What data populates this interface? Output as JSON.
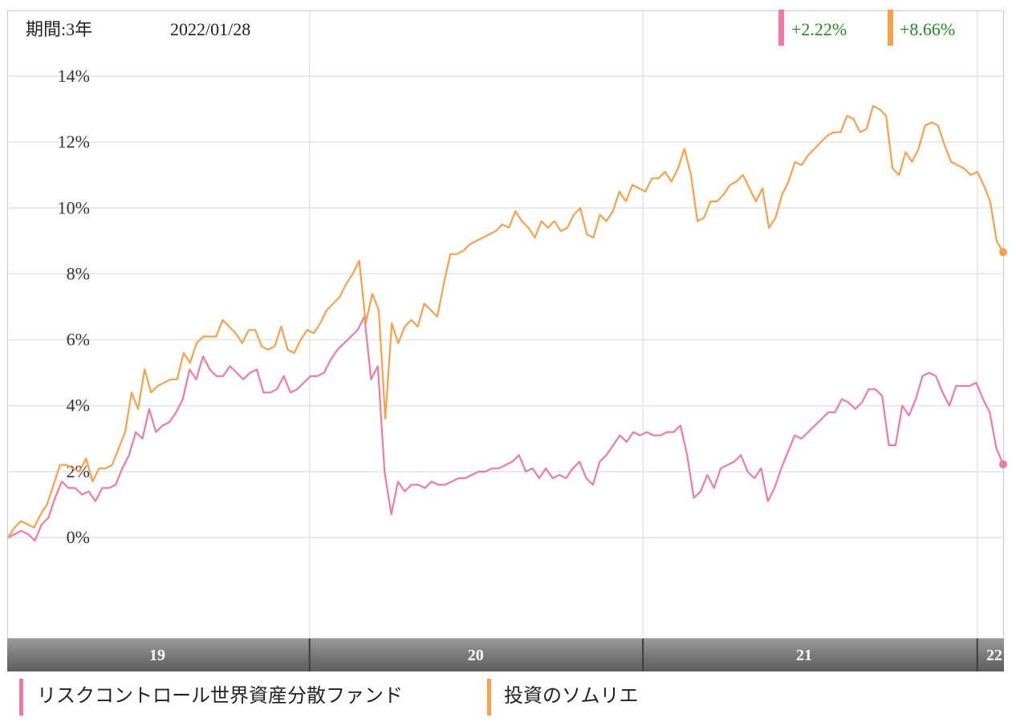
{
  "header": {
    "period_label": "期間:3年",
    "date_label": "2022/01/28"
  },
  "colors": {
    "series1": "#f07aa6",
    "series2": "#f7a14e",
    "return_text": "#1f8a1f"
  },
  "chart_data": {
    "type": "line",
    "ylim": [
      -3,
      15
    ],
    "y_ticks": [
      0,
      2,
      4,
      6,
      8,
      10,
      12,
      14
    ],
    "y_tick_labels": [
      "0%",
      "2%",
      "4%",
      "6%",
      "8%",
      "10%",
      "12%",
      "14%"
    ],
    "x_labels": [
      "19",
      "20",
      "21",
      "22"
    ],
    "x_label_fractions": [
      0.15,
      0.47,
      0.8,
      0.995
    ],
    "year_boundary_fractions": [
      0.303,
      0.638,
      0.974
    ],
    "grid": true,
    "legend_position": "bottom-left",
    "series": [
      {
        "name": "リスクコントロール世界資産分散ファンド",
        "return_label": "+2.22%",
        "color": "#f07aa6",
        "values": [
          0.0,
          0.1,
          0.2,
          0.1,
          -0.1,
          0.4,
          0.6,
          1.2,
          1.7,
          1.5,
          1.5,
          1.3,
          1.4,
          1.1,
          1.5,
          1.5,
          1.6,
          2.1,
          2.5,
          3.2,
          3.0,
          3.9,
          3.2,
          3.4,
          3.5,
          3.8,
          4.2,
          5.1,
          4.8,
          5.5,
          5.1,
          4.9,
          4.9,
          5.2,
          5.0,
          4.8,
          5.0,
          5.1,
          4.4,
          4.4,
          4.5,
          4.9,
          4.4,
          4.5,
          4.7,
          4.9,
          4.9,
          5.0,
          5.4,
          5.7,
          5.9,
          6.1,
          6.3,
          6.7,
          4.8,
          5.2,
          2.0,
          0.7,
          1.7,
          1.4,
          1.6,
          1.6,
          1.5,
          1.7,
          1.6,
          1.6,
          1.7,
          1.8,
          1.8,
          1.9,
          2.0,
          2.0,
          2.1,
          2.1,
          2.2,
          2.3,
          2.5,
          2.0,
          2.1,
          1.8,
          2.1,
          1.8,
          1.9,
          1.8,
          2.1,
          2.3,
          1.8,
          1.6,
          2.3,
          2.5,
          2.8,
          3.1,
          2.9,
          3.2,
          3.1,
          3.2,
          3.1,
          3.1,
          3.2,
          3.2,
          3.4,
          2.5,
          1.2,
          1.4,
          1.9,
          1.5,
          2.1,
          2.2,
          2.3,
          2.5,
          2.0,
          1.8,
          2.1,
          1.1,
          1.5,
          2.1,
          2.6,
          3.1,
          3.0,
          3.2,
          3.4,
          3.6,
          3.8,
          3.8,
          4.2,
          4.1,
          3.9,
          4.1,
          4.5,
          4.5,
          4.3,
          2.8,
          2.8,
          4.0,
          3.7,
          4.2,
          4.9,
          5.0,
          4.9,
          4.4,
          4.0,
          4.6,
          4.6,
          4.6,
          4.7,
          4.2,
          3.8,
          2.7,
          2.22
        ]
      },
      {
        "name": "投資のソムリエ",
        "return_label": "+8.66%",
        "color": "#f7a14e",
        "values": [
          0.0,
          0.3,
          0.5,
          0.4,
          0.3,
          0.7,
          1.0,
          1.6,
          2.2,
          2.2,
          2.1,
          2.0,
          2.4,
          1.7,
          2.1,
          2.1,
          2.2,
          2.7,
          3.2,
          4.4,
          3.9,
          5.1,
          4.4,
          4.6,
          4.7,
          4.8,
          4.8,
          5.6,
          5.3,
          5.9,
          6.1,
          6.1,
          6.1,
          6.6,
          6.4,
          6.2,
          5.9,
          6.3,
          6.3,
          5.8,
          5.7,
          5.8,
          6.4,
          5.7,
          5.6,
          6.0,
          6.3,
          6.2,
          6.5,
          6.9,
          7.1,
          7.3,
          7.7,
          8.0,
          8.4,
          6.5,
          7.4,
          6.9,
          3.6,
          6.5,
          5.9,
          6.4,
          6.6,
          6.4,
          7.1,
          6.9,
          6.7,
          7.7,
          8.6,
          8.6,
          8.7,
          8.9,
          9.0,
          9.1,
          9.2,
          9.3,
          9.5,
          9.4,
          9.9,
          9.6,
          9.4,
          9.1,
          9.6,
          9.4,
          9.6,
          9.3,
          9.4,
          9.8,
          10.0,
          9.2,
          9.1,
          9.8,
          9.6,
          9.9,
          10.5,
          10.2,
          10.7,
          10.6,
          10.5,
          10.9,
          10.9,
          11.1,
          10.8,
          11.2,
          11.8,
          11.0,
          9.6,
          9.7,
          10.2,
          10.2,
          10.4,
          10.7,
          10.8,
          11.0,
          10.6,
          10.2,
          10.6,
          9.4,
          9.7,
          10.4,
          10.8,
          11.4,
          11.3,
          11.6,
          11.8,
          12.0,
          12.2,
          12.3,
          12.3,
          12.8,
          12.7,
          12.3,
          12.4,
          13.1,
          13.0,
          12.8,
          11.2,
          11.0,
          11.7,
          11.4,
          11.8,
          12.5,
          12.6,
          12.5,
          11.9,
          11.4,
          11.3,
          11.2,
          11.0,
          11.1,
          10.7,
          10.2,
          9.0,
          8.66
        ]
      }
    ]
  }
}
